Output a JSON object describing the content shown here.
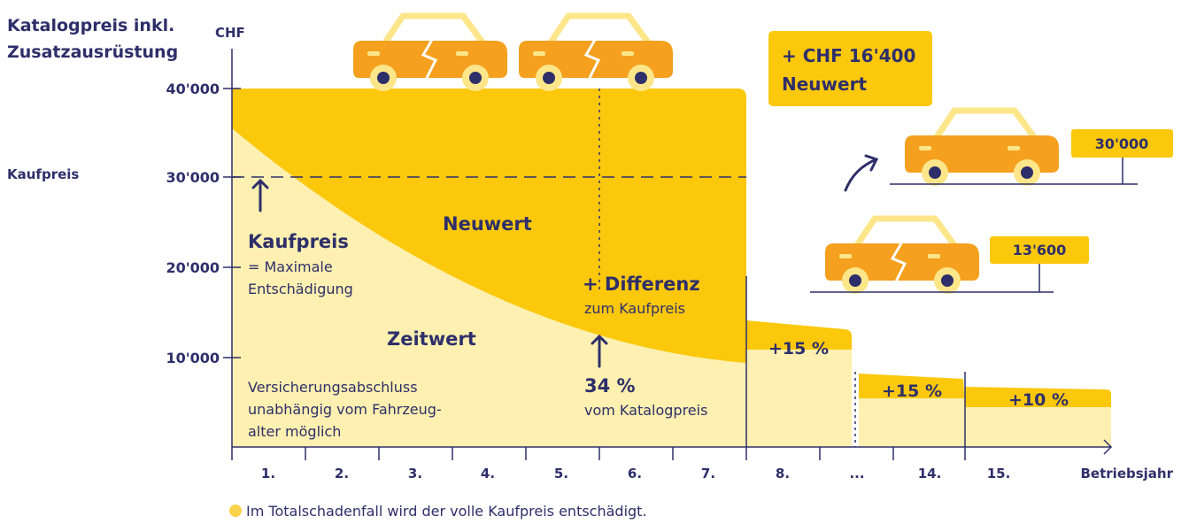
{
  "y_axis": {
    "title": [
      "Katalogpreis inkl.",
      "Zusatzausrüstung"
    ],
    "unit": "CHF",
    "ticks": [
      "40'000",
      "30'000",
      "20'000",
      "10'000"
    ],
    "marker_label": "Kaufpreis"
  },
  "x_axis": {
    "ticks": [
      "1.",
      "2.",
      "3.",
      "4.",
      "5.",
      "6.",
      "7.",
      "8.",
      "...",
      "14.",
      "15."
    ],
    "label": "Betriebsjahr"
  },
  "areas": {
    "neuwert": "Neuwert",
    "zeitwert": "Zeitwert"
  },
  "annotations": {
    "kaufpreis": {
      "title": "Kaufpreis",
      "lines": [
        "= Maximale",
        "Entschädigung"
      ]
    },
    "abschluss": [
      "Versicherungsabschluss",
      "unabhängig vom Fahrzeug-",
      "alter möglich"
    ],
    "differenz": {
      "title": "+ Differenz",
      "subtitle": "zum Kaufpreis"
    },
    "prozent": {
      "title": "34 %",
      "subtitle": "vom Katalogpreis"
    },
    "steps": [
      "+15 %",
      "+15 %",
      "+10 %"
    ],
    "neuwert_box": [
      "+ CHF 16'400",
      "Neuwert"
    ],
    "price_new": "30'000",
    "price_old": "13'600"
  },
  "footnote": "Im Totalschadenfall wird der volle Kaufpreis entschädigt."
}
